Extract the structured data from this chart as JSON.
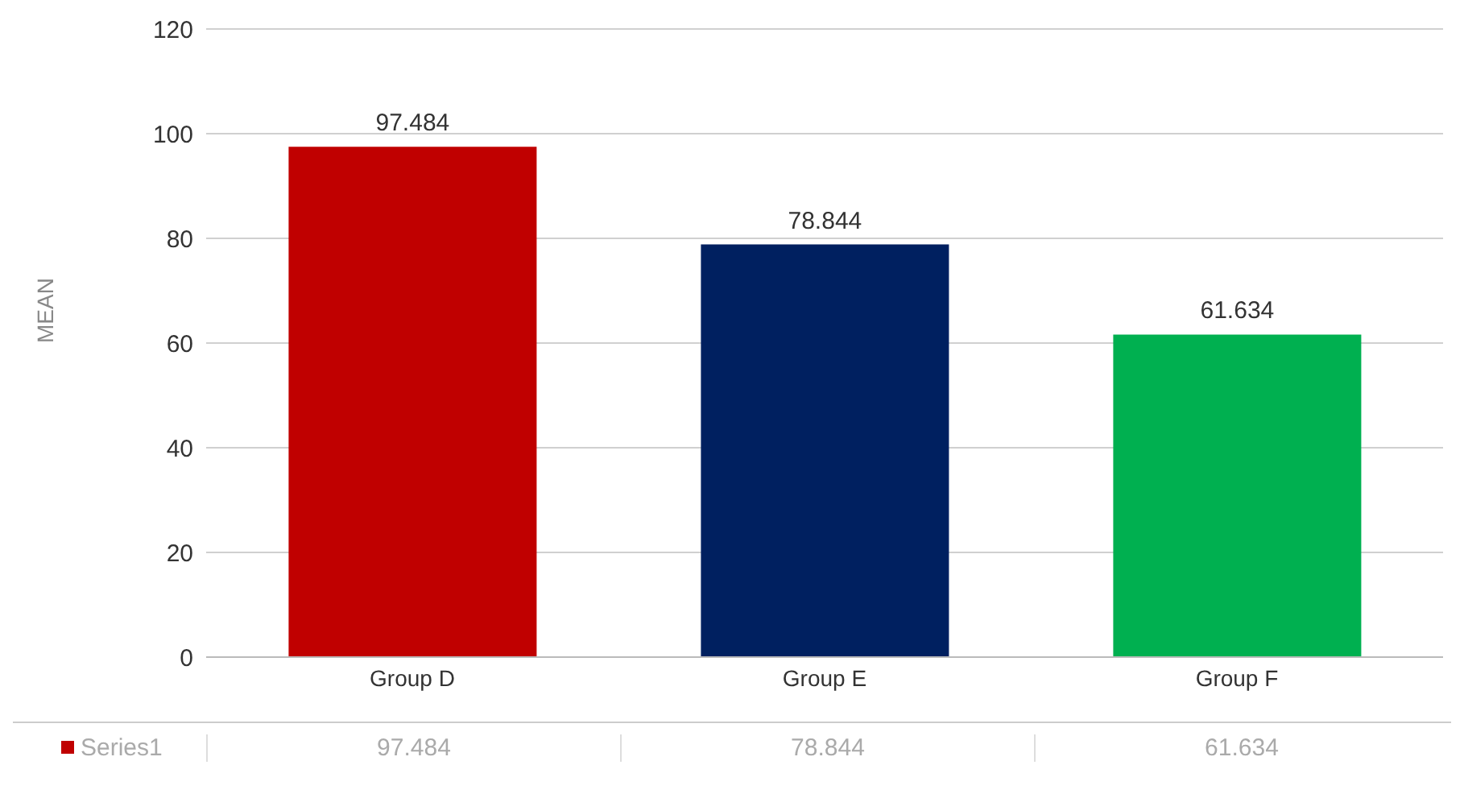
{
  "chart_data": {
    "type": "bar",
    "ylabel": "MEAN",
    "categories": [
      "Group D",
      "Group E",
      "Group F"
    ],
    "series": [
      {
        "name": "Series1",
        "colors": [
          "#c00000",
          "#002060",
          "#00b050"
        ],
        "values": [
          97.484,
          78.844,
          61.634
        ],
        "value_labels": [
          "97.484",
          "78.844",
          "61.634"
        ]
      }
    ],
    "ylim": [
      0,
      120
    ],
    "yticks": [
      0,
      20,
      40,
      60,
      80,
      100,
      120
    ],
    "annotations": [
      "97.484",
      "78.844",
      "61.634"
    ],
    "grid": "y",
    "legend": "bottom left"
  }
}
